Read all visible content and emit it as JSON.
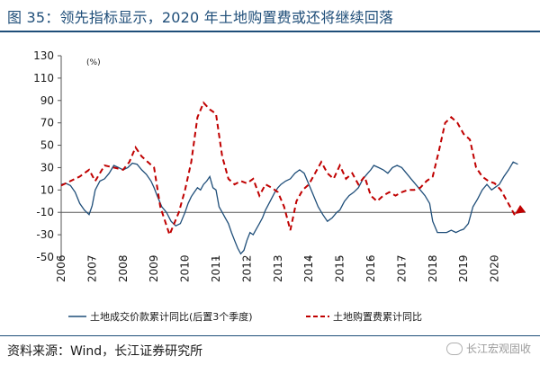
{
  "title": "图 35：领先指标显示，2020 年土地购置费或还将继续回落",
  "source": "资料来源：Wind，长江证券研究所",
  "watermark": "长江宏观固收",
  "chart_data": {
    "type": "line",
    "unit_label": "(%)",
    "ylim": [
      -50,
      130
    ],
    "yticks": [
      "130",
      "110",
      "90",
      "70",
      "50",
      "30",
      "10",
      "-10",
      "-30",
      "-50"
    ],
    "xticks": [
      "2006",
      "2007",
      "2008",
      "2009",
      "2010",
      "2011",
      "2012",
      "2013",
      "2014",
      "2015",
      "2016",
      "2017",
      "2018",
      "2019",
      "2020"
    ],
    "xlim": [
      2006.0,
      2021.0
    ],
    "series": [
      {
        "name": "土地成交价款累计同比(后置3个季度)",
        "color": "#1f4e79",
        "style": "solid",
        "x": [
          2006.0,
          2006.15,
          2006.3,
          2006.45,
          2006.6,
          2006.75,
          2006.9,
          2007.0,
          2007.1,
          2007.25,
          2007.4,
          2007.55,
          2007.7,
          2007.85,
          2008.0,
          2008.15,
          2008.3,
          2008.45,
          2008.6,
          2008.75,
          2008.9,
          2009.0,
          2009.1,
          2009.25,
          2009.4,
          2009.55,
          2009.7,
          2009.85,
          2010.0,
          2010.1,
          2010.2,
          2010.3,
          2010.4,
          2010.5,
          2010.6,
          2010.7,
          2010.8,
          2010.9,
          2011.0,
          2011.1,
          2011.2,
          2011.3,
          2011.4,
          2011.5,
          2011.6,
          2011.7,
          2011.8,
          2011.9,
          2012.0,
          2012.1,
          2012.2,
          2012.3,
          2012.4,
          2012.5,
          2012.6,
          2012.75,
          2012.9,
          2013.0,
          2013.1,
          2013.25,
          2013.4,
          2013.55,
          2013.7,
          2013.85,
          2014.0,
          2014.15,
          2014.3,
          2014.45,
          2014.6,
          2014.75,
          2014.9,
          2015.0,
          2015.15,
          2015.3,
          2015.45,
          2015.6,
          2015.75,
          2015.9,
          2016.0,
          2016.1,
          2016.25,
          2016.4,
          2016.55,
          2016.7,
          2016.85,
          2017.0,
          2017.15,
          2017.3,
          2017.45,
          2017.6,
          2017.75,
          2017.9,
          2018.0,
          2018.15,
          2018.3,
          2018.45,
          2018.6,
          2018.75,
          2018.9,
          2019.0,
          2019.15,
          2019.3,
          2019.45,
          2019.6,
          2019.75,
          2019.9,
          2020.0,
          2020.15,
          2020.3,
          2020.45,
          2020.6,
          2020.75
        ],
        "values": [
          15,
          16,
          14,
          8,
          -2,
          -8,
          -12,
          -4,
          10,
          18,
          20,
          25,
          32,
          30,
          28,
          30,
          34,
          33,
          28,
          24,
          18,
          12,
          5,
          -5,
          -10,
          -18,
          -22,
          -20,
          -10,
          -2,
          4,
          8,
          12,
          10,
          15,
          18,
          22,
          12,
          10,
          -5,
          -10,
          -15,
          -20,
          -28,
          -35,
          -42,
          -47,
          -44,
          -35,
          -28,
          -30,
          -25,
          -20,
          -15,
          -8,
          0,
          8,
          12,
          15,
          18,
          20,
          25,
          28,
          25,
          15,
          5,
          -5,
          -12,
          -18,
          -15,
          -10,
          -8,
          0,
          5,
          8,
          12,
          20,
          25,
          28,
          32,
          30,
          28,
          25,
          30,
          32,
          30,
          25,
          20,
          15,
          10,
          5,
          -2,
          -18,
          -28,
          -28,
          -28,
          -26,
          -28,
          -26,
          -25,
          -20,
          -5,
          2,
          10,
          15,
          10,
          12,
          15,
          22,
          28,
          35,
          33
        ],
        "note": "raw points used only as shape guide"
      },
      {
        "name": "土地购置费累计同比",
        "color": "#c00000",
        "style": "dashed"
      }
    ]
  },
  "legend": {
    "s1": "土地成交价款累计同比(后置3个季度)",
    "s2": "土地购置费累计同比"
  }
}
